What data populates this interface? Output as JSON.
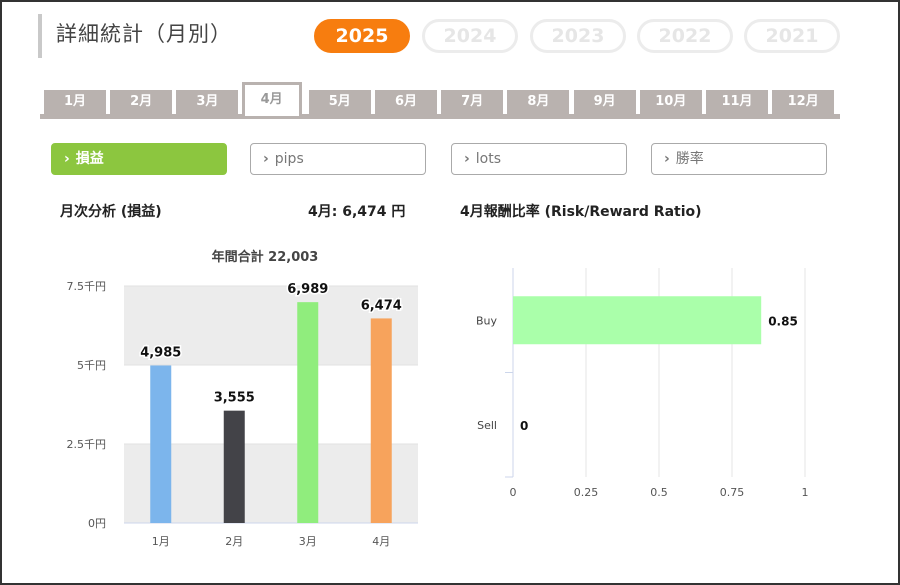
{
  "header": {
    "title": "詳細統計（月別）"
  },
  "years": [
    {
      "label": "2025",
      "active": true
    },
    {
      "label": "2024",
      "active": false
    },
    {
      "label": "2023",
      "active": false
    },
    {
      "label": "2022",
      "active": false
    },
    {
      "label": "2021",
      "active": false
    }
  ],
  "months": [
    {
      "label": "1月",
      "active": false
    },
    {
      "label": "2月",
      "active": false
    },
    {
      "label": "3月",
      "active": false
    },
    {
      "label": "4月",
      "active": true
    },
    {
      "label": "5月",
      "active": false
    },
    {
      "label": "6月",
      "active": false
    },
    {
      "label": "7月",
      "active": false
    },
    {
      "label": "8月",
      "active": false
    },
    {
      "label": "9月",
      "active": false
    },
    {
      "label": "10月",
      "active": false
    },
    {
      "label": "11月",
      "active": false
    },
    {
      "label": "12月",
      "active": false
    }
  ],
  "metrics": [
    {
      "label": "損益",
      "active": true
    },
    {
      "label": "pips",
      "active": false
    },
    {
      "label": "lots",
      "active": false
    },
    {
      "label": "勝率",
      "active": false
    }
  ],
  "left_panel": {
    "heading": "月次分析 (損益)",
    "current_month_label": "4月: 6,474 円"
  },
  "right_panel": {
    "heading": "4月報酬比率 (Risk/Reward Ratio)"
  },
  "chart_data": [
    {
      "type": "bar",
      "title": "年間合計 22,003",
      "categories": [
        "1月",
        "2月",
        "3月",
        "4月"
      ],
      "values": [
        4985,
        3555,
        6989,
        6474
      ],
      "value_labels": [
        "4,985",
        "3,555",
        "6,989",
        "6,474"
      ],
      "colors": [
        "#7cb5ec",
        "#434348",
        "#90ed7d",
        "#f7a35c"
      ],
      "y_ticks": [
        0,
        2500,
        5000,
        7500
      ],
      "y_tick_labels": [
        "0円",
        "2.5千円",
        "5千円",
        "7.5千円"
      ],
      "ylim": [
        0,
        7500
      ],
      "grid": "alternating bands"
    },
    {
      "type": "bar",
      "orientation": "horizontal",
      "categories": [
        "Buy",
        "Sell"
      ],
      "values": [
        0.85,
        0
      ],
      "value_labels": [
        "0.85",
        "0"
      ],
      "colors": [
        "#aaffaa",
        "#aaffaa"
      ],
      "x_ticks": [
        0,
        0.25,
        0.5,
        0.75,
        1
      ],
      "x_tick_labels": [
        "0",
        "0.25",
        "0.5",
        "0.75",
        "1"
      ],
      "xlim": [
        0,
        1
      ],
      "grid": "vertical lines"
    }
  ]
}
